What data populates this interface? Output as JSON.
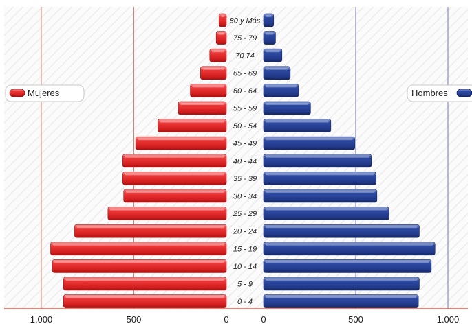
{
  "chart_data": {
    "type": "bar",
    "orientation": "horizontal-population-pyramid",
    "categories": [
      "80 y Más",
      "75 - 79",
      "70 74",
      "65 - 69",
      "60 - 64",
      "55 - 59",
      "50 - 54",
      "45 - 49",
      "40 - 44",
      "35 - 39",
      "30 - 34",
      "25 - 29",
      "20 - 24",
      "15 - 19",
      "10 - 14",
      "5 - 9",
      "0 - 4"
    ],
    "series": [
      {
        "name": "Mujeres",
        "color": "#e32a2a",
        "values": [
          40,
          55,
          90,
          140,
          195,
          260,
          370,
          490,
          560,
          560,
          555,
          640,
          820,
          950,
          940,
          880,
          880
        ]
      },
      {
        "name": "Hombres",
        "color": "#243f93",
        "values": [
          55,
          65,
          100,
          145,
          190,
          255,
          365,
          495,
          585,
          610,
          615,
          680,
          845,
          930,
          910,
          845,
          840
        ]
      }
    ],
    "xlim": [
      0,
      1000
    ],
    "x_ticks_left": [
      "1.000",
      "500",
      "0"
    ],
    "x_ticks_right": [
      "0",
      "500",
      "1.000"
    ],
    "legend": {
      "left_label": "Mujeres",
      "right_label": "Hombres"
    },
    "grid": true
  }
}
